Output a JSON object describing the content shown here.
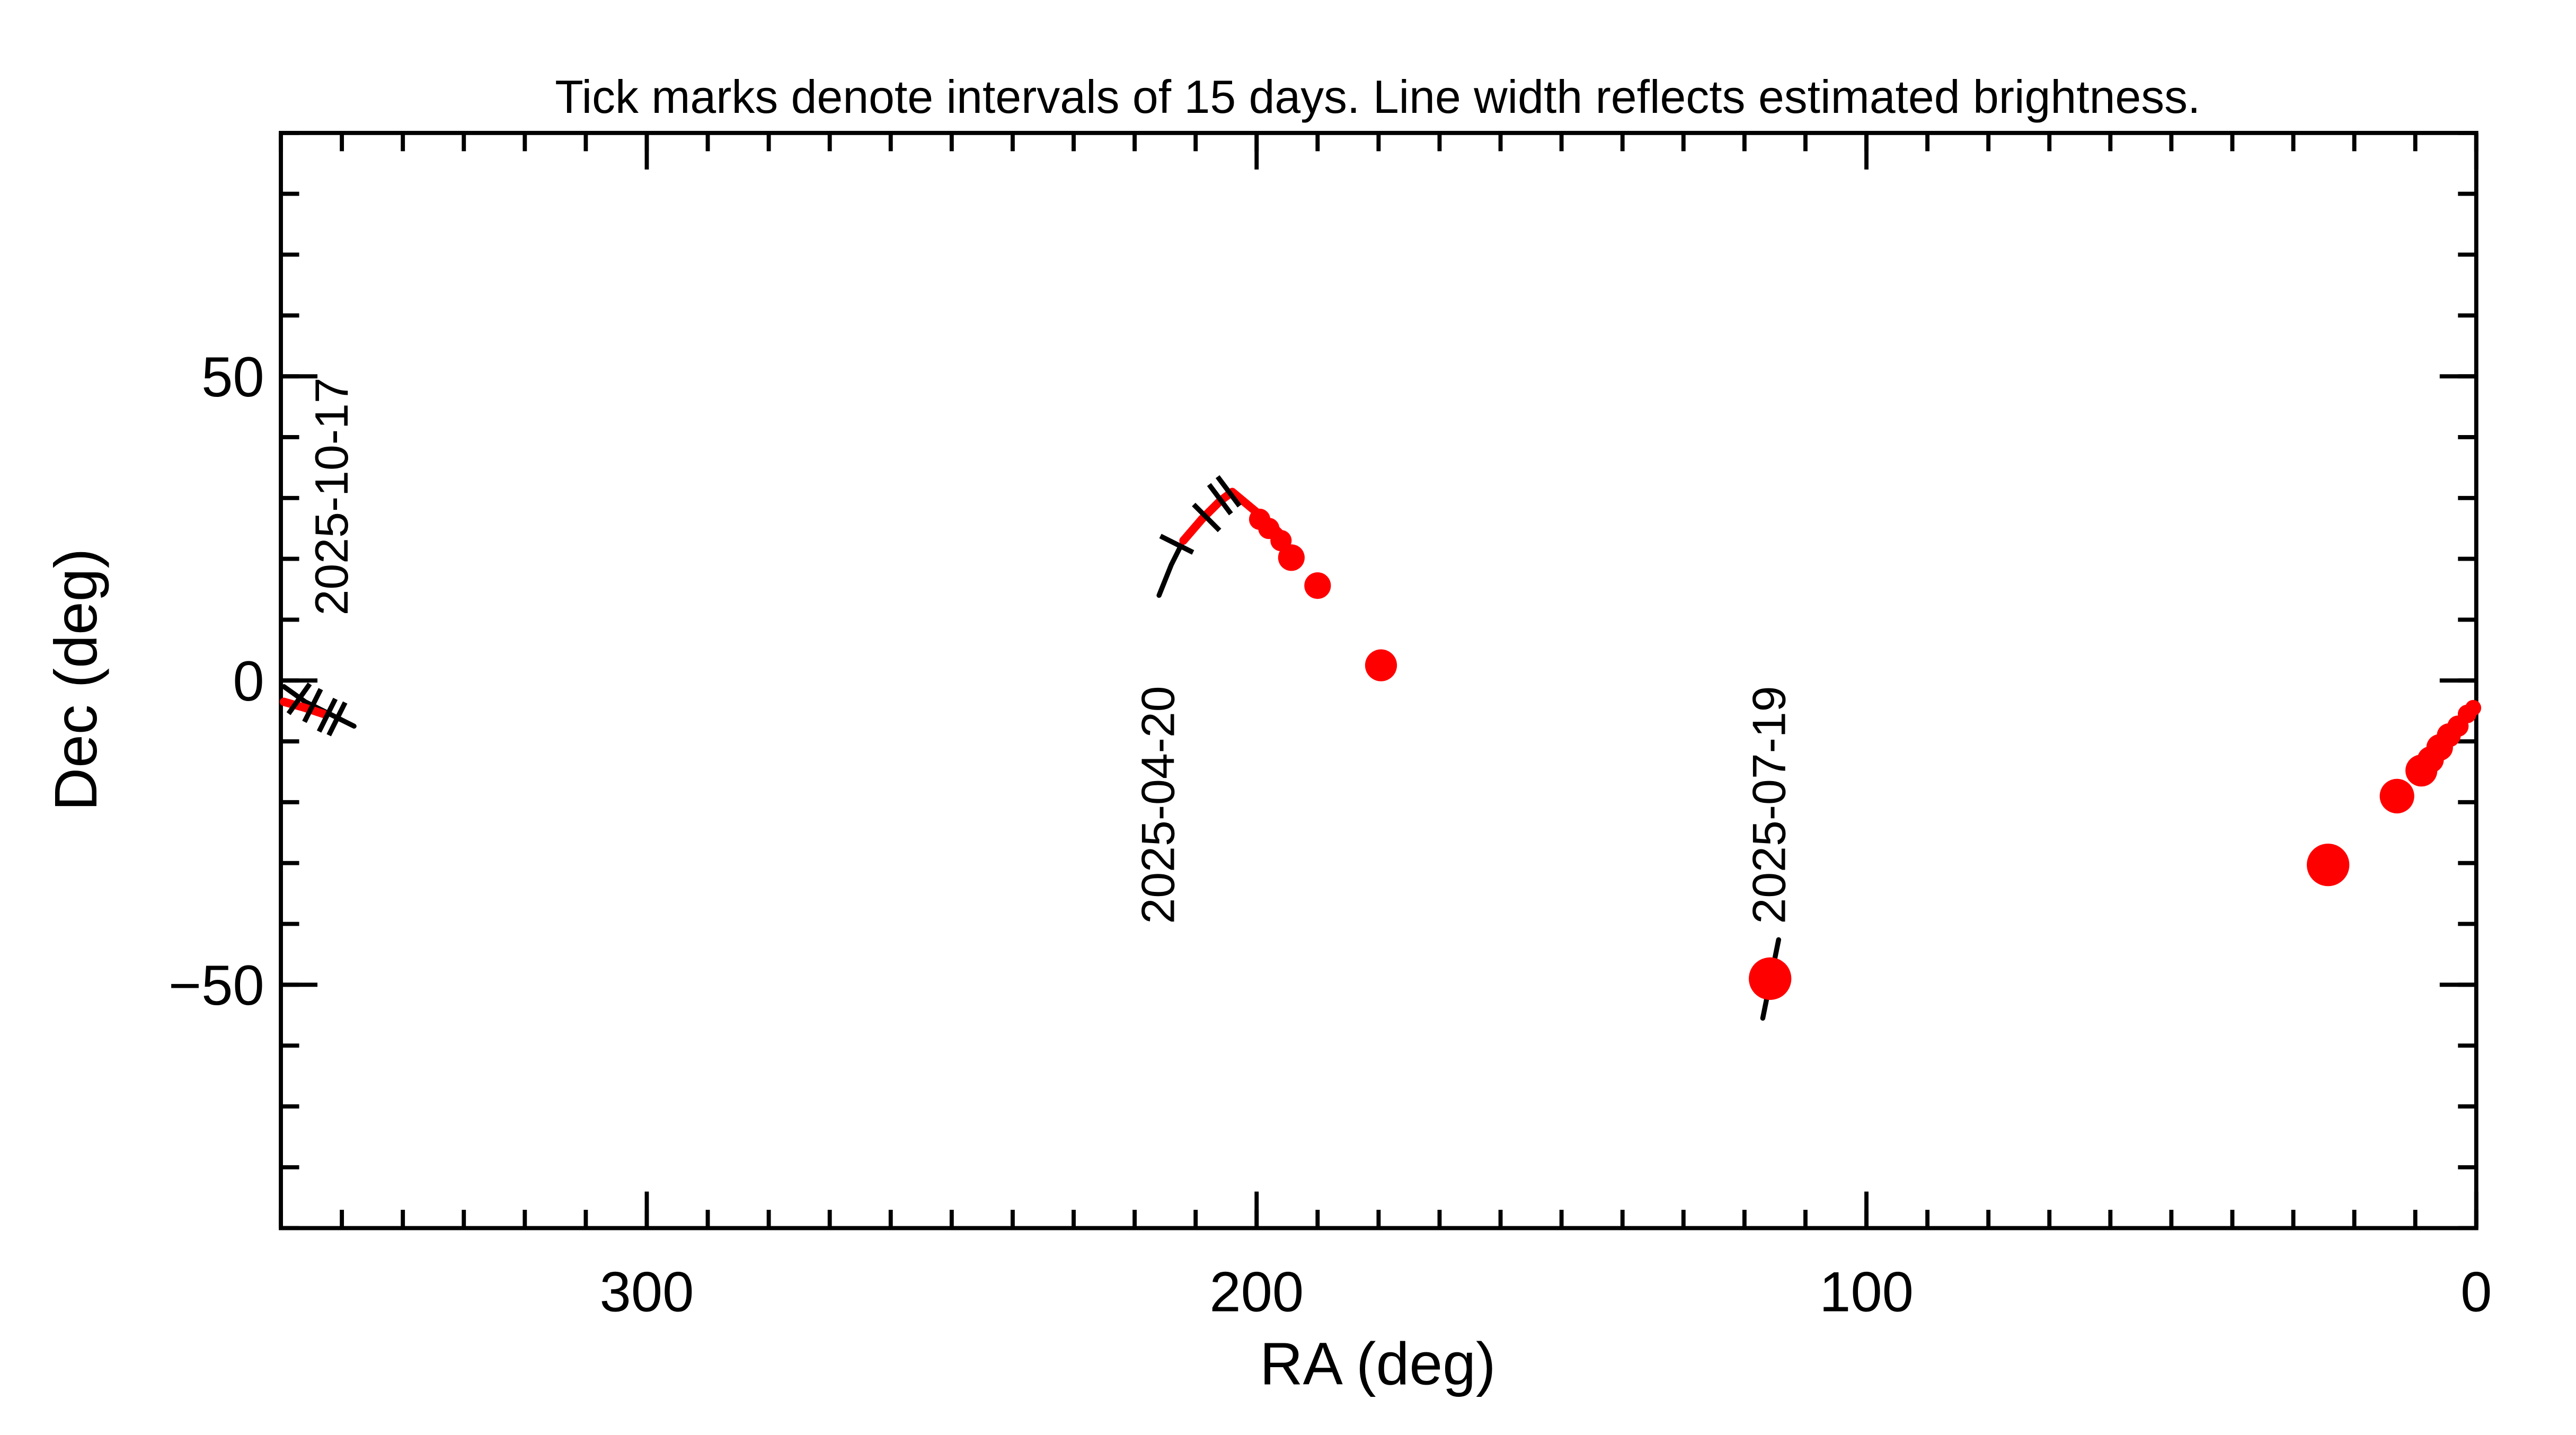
{
  "chart_data": {
    "type": "trajectory",
    "title": "Tick marks denote intervals of 15 days.  Line width reflects estimated brightness.",
    "xlabel": "RA (deg)",
    "ylabel": "Dec (deg)",
    "xlim": [
      360,
      0
    ],
    "ylim": [
      -90,
      90
    ],
    "xticks": [
      300,
      200,
      100,
      0
    ],
    "yticks": [
      {
        "value": -50,
        "label": "−50"
      },
      0,
      50
    ],
    "x_minor_step": 10,
    "y_minor_step": 10,
    "series": [
      {
        "mode": "line",
        "color": "#000000",
        "x": [
          216,
          214,
          212,
          209,
          206,
          204,
          201
        ],
        "values": [
          14,
          19,
          23,
          26.5,
          29.5,
          31,
          28.5
        ]
      },
      {
        "mode": "line",
        "color": "#000000",
        "x": [
          359.5,
          356,
          352,
          348
        ],
        "values": [
          -1,
          -3.5,
          -5.5,
          -7.5
        ]
      },
      {
        "mode": "line",
        "color": "#000000",
        "x": [
          114.4,
          117
        ],
        "values": [
          -42.6,
          -55.5
        ]
      },
      {
        "mode": "line",
        "color": "#ff0000",
        "x": [
          212,
          209,
          206,
          204,
          201,
          198,
          196
        ],
        "values": [
          23,
          26.5,
          29.5,
          31,
          28.5,
          26,
          24
        ]
      },
      {
        "mode": "line",
        "color": "#ff0000",
        "x": [
          359.5,
          356,
          353
        ],
        "values": [
          -3.5,
          -4.5,
          -5.5
        ]
      },
      {
        "mode": "markers",
        "color": "#ff0000",
        "x": [
          199.5,
          198,
          196,
          194.3,
          190,
          179.6,
          115.8,
          24.3,
          13,
          9,
          7.5,
          6,
          4.5,
          3,
          1.5,
          0.5
        ],
        "values": [
          26.5,
          25,
          23,
          20.2,
          15.6,
          2.5,
          -49,
          -30.3,
          -19,
          -14.8,
          -13,
          -11,
          -9,
          -7.5,
          -5.5,
          -4.5
        ],
        "sizes": [
          4,
          4,
          4,
          5,
          5,
          6,
          8,
          8,
          6.5,
          6,
          5,
          5,
          4.5,
          4,
          3.5,
          3
        ]
      }
    ],
    "date_ticks": {
      "x": [
        213.1,
        208.2,
        206,
        204.6,
        357,
        354.8,
        352.4,
        350.8
      ],
      "y": [
        22.4,
        26.8,
        29.8,
        31.1,
        -3,
        -4.1,
        -5.7,
        -6.3
      ]
    },
    "annotations": [
      {
        "text": "2025-10-17",
        "x": 351.5,
        "y": 10.7
      },
      {
        "text": "2025-04-20",
        "x": 216,
        "y": -40
      },
      {
        "text": "2025-07-19",
        "x": 115.8,
        "y": -40
      }
    ]
  }
}
